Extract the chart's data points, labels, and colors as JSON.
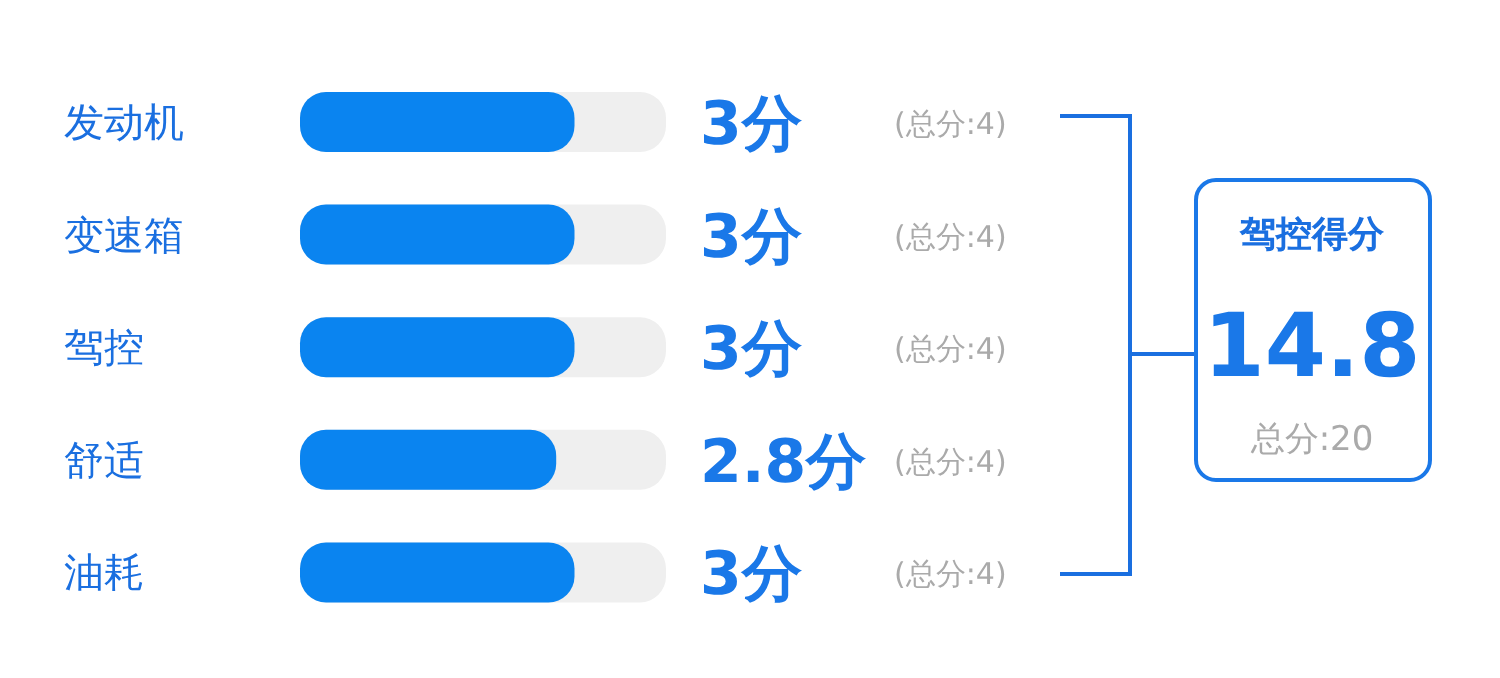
{
  "chart_data": [
    {
      "type": "bar",
      "orientation": "horizontal",
      "categories": [
        "发动机",
        "变速箱",
        "驾控",
        "舒适",
        "油耗"
      ],
      "values": [
        3,
        3,
        3,
        2.8,
        3
      ],
      "color": "#0a84f0",
      "xlim": [
        0,
        4
      ],
      "value_labels": [
        "3分",
        "3分",
        "3分",
        "2.8分",
        "3分"
      ],
      "annotations": [
        "(总分:4)",
        "(总分:4)",
        "(总分:4)",
        "(总分:4)",
        "(总分:4)"
      ]
    },
    {
      "type": "other",
      "title": "驾控得分",
      "annotations": [
        "14.8",
        "总分:20"
      ]
    }
  ]
}
